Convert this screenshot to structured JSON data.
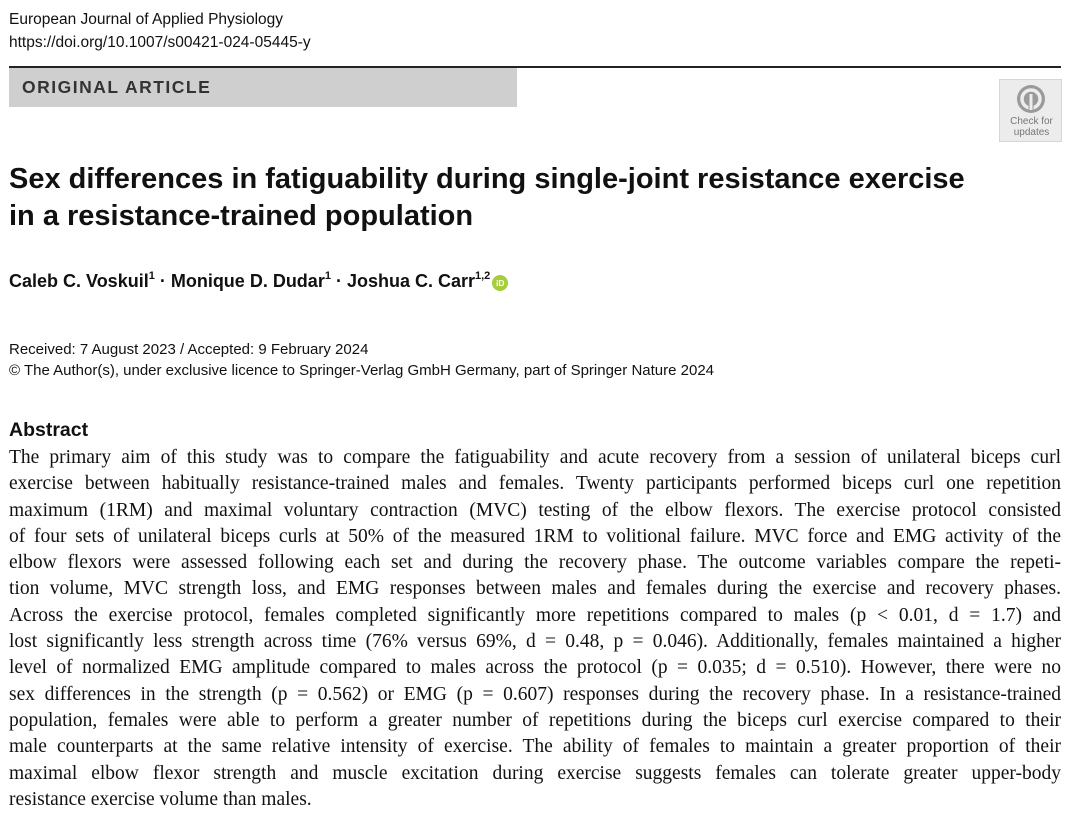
{
  "journal": {
    "name": "European Journal of Applied Physiology",
    "doi": "https://doi.org/10.1007/s00421-024-05445-y"
  },
  "article_type": "ORIGINAL ARTICLE",
  "crossmark": {
    "icon": "crossmark-icon",
    "line1": "Check for",
    "line2": "updates"
  },
  "title": {
    "line1": "Sex differences in fatiguability during single-joint resistance exercise",
    "line2": "in a resistance-trained population"
  },
  "authors": [
    {
      "name": "Caleb C. Voskuil",
      "aff": "1"
    },
    {
      "name": "Monique D. Dudar",
      "aff": "1"
    },
    {
      "name": "Joshua C. Carr",
      "aff": "1,2"
    }
  ],
  "author_separator": " · ",
  "orcid": {
    "icon": "orcid-icon",
    "label": "iD",
    "color": "#a6ce39"
  },
  "dates": {
    "received_accepted": "Received: 7 August 2023 / Accepted: 9 February 2024",
    "copyright": "© The Author(s), under exclusive licence to Springer-Verlag GmbH Germany, part of Springer Nature 2024"
  },
  "abstract": {
    "heading": "Abstract",
    "lines": [
      "The primary aim of this study was to compare the fatiguability and acute recovery from a session of unilateral biceps curl",
      "exercise between habitually resistance-trained males and females. Twenty participants performed biceps curl one repetition",
      "maximum (1RM) and maximal voluntary contraction (MVC) testing of the elbow flexors. The exercise protocol consisted",
      "of four sets of unilateral biceps curls at 50% of the measured 1RM to volitional failure. MVC force and EMG activity of the",
      "elbow flexors were assessed following each set and during the recovery phase. The outcome variables compare the repeti-",
      "tion volume, MVC strength loss, and EMG responses between males and females during the exercise and recovery phases.",
      "Across the exercise protocol, females completed significantly more repetitions compared to males (p < 0.01, d = 1.7) and",
      "lost significantly less strength across time (76% versus 69%, d = 0.48, p = 0.046). Additionally, females maintained a higher",
      "level of normalized EMG amplitude compared to males across the protocol (p = 0.035; d = 0.510). However, there were no",
      "sex differences in the strength (p = 0.562) or EMG (p = 0.607) responses during the recovery phase. In a resistance-trained",
      "population, females were able to perform a greater number of repetitions during the biceps curl exercise compared to their",
      "male counterparts at the same relative intensity of exercise. The ability of females to maintain a greater proportion of their",
      "maximal elbow flexor strength and muscle excitation during exercise suggests females can tolerate greater upper-body",
      "resistance exercise volume than males."
    ]
  }
}
